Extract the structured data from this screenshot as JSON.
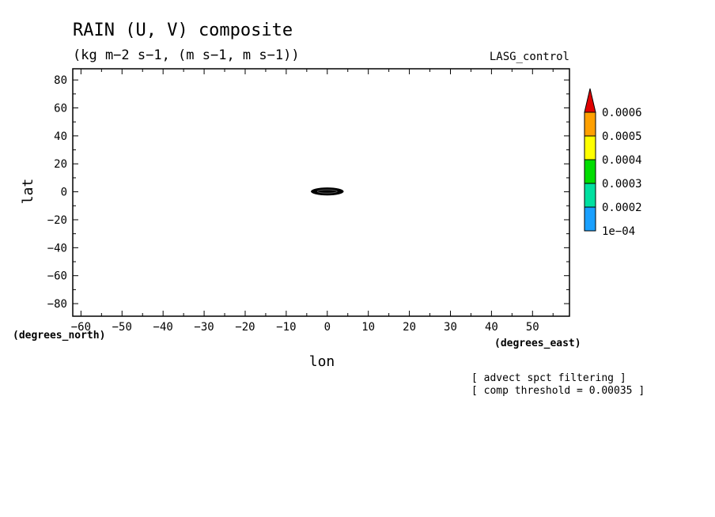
{
  "chart_data": {
    "type": "heatmap",
    "title": "RAIN (U, V) composite",
    "subtitle": "(kg m−2 s−1, (m s−1, m s−1))",
    "experiment_label": "LASG_control",
    "xlabel": "lon",
    "ylabel": "lat",
    "x_units": "(degrees_east)",
    "y_units": "(degrees_north)",
    "xlim": [
      -62,
      59
    ],
    "ylim": [
      -89,
      88
    ],
    "x_ticks": [
      -60,
      -50,
      -40,
      -30,
      -20,
      -10,
      0,
      10,
      20,
      30,
      40,
      50
    ],
    "x_tick_labels": [
      "−60",
      "−50",
      "−40",
      "−30",
      "−20",
      "−10",
      "0",
      "10",
      "20",
      "30",
      "40",
      "50"
    ],
    "y_ticks": [
      80,
      60,
      40,
      20,
      0,
      -20,
      -40,
      -60,
      -80
    ],
    "y_tick_labels": [
      "80",
      "60",
      "40",
      "20",
      "0",
      "−20",
      "−40",
      "−60",
      "−80"
    ],
    "colorbar": {
      "levels": [
        0.0001,
        0.0002,
        0.0003,
        0.0004,
        0.0005,
        0.0006
      ],
      "level_labels": [
        "1e−04",
        "0.0002",
        "0.0003",
        "0.0004",
        "0.0005",
        "0.0006"
      ],
      "colors": [
        "#1aa0ff",
        "#00e0a0",
        "#00dd00",
        "#ffff00",
        "#ffa000",
        "#e00000"
      ]
    },
    "feature": {
      "description_color": "#000000",
      "lon_range": [
        -4,
        4
      ],
      "lat_range": [
        -1.5,
        2.0
      ]
    },
    "notes": [
      "[ advect spct filtering ]",
      "[ comp threshold = 0.00035 ]"
    ],
    "grid": false
  }
}
